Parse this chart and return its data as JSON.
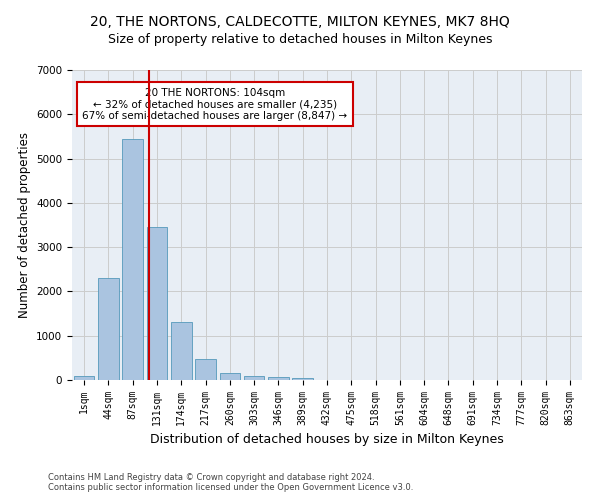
{
  "title": "20, THE NORTONS, CALDECOTTE, MILTON KEYNES, MK7 8HQ",
  "subtitle": "Size of property relative to detached houses in Milton Keynes",
  "xlabel": "Distribution of detached houses by size in Milton Keynes",
  "ylabel": "Number of detached properties",
  "footer_line1": "Contains HM Land Registry data © Crown copyright and database right 2024.",
  "footer_line2": "Contains public sector information licensed under the Open Government Licence v3.0.",
  "bar_labels": [
    "1sqm",
    "44sqm",
    "87sqm",
    "131sqm",
    "174sqm",
    "217sqm",
    "260sqm",
    "303sqm",
    "346sqm",
    "389sqm",
    "432sqm",
    "475sqm",
    "518sqm",
    "561sqm",
    "604sqm",
    "648sqm",
    "691sqm",
    "734sqm",
    "777sqm",
    "820sqm",
    "863sqm"
  ],
  "bar_values": [
    80,
    2300,
    5450,
    3450,
    1320,
    470,
    160,
    90,
    60,
    40,
    0,
    0,
    0,
    0,
    0,
    0,
    0,
    0,
    0,
    0,
    0
  ],
  "bar_color": "#aac4e0",
  "bar_edge_color": "#5599bb",
  "red_line_x": 2.65,
  "annotation_text": "20 THE NORTONS: 104sqm\n← 32% of detached houses are smaller (4,235)\n67% of semi-detached houses are larger (8,847) →",
  "annotation_box_color": "#ffffff",
  "annotation_box_edge": "#cc0000",
  "annotation_text_color": "#000000",
  "red_line_color": "#cc0000",
  "ylim": [
    0,
    7000
  ],
  "yticks": [
    0,
    1000,
    2000,
    3000,
    4000,
    5000,
    6000,
    7000
  ],
  "grid_color": "#cccccc",
  "bg_color": "#e8eef5",
  "title_fontsize": 10,
  "subtitle_fontsize": 9,
  "axis_fontsize": 8.5,
  "tick_fontsize": 7
}
